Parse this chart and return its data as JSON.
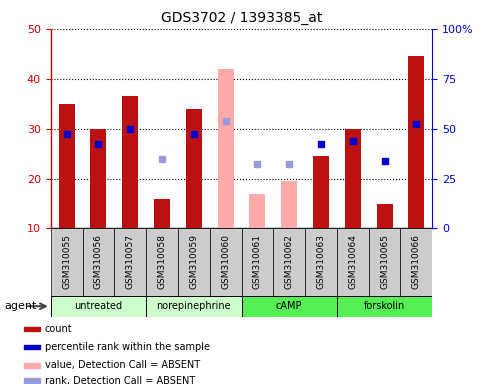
{
  "title": "GDS3702 / 1393385_at",
  "samples": [
    "GSM310055",
    "GSM310056",
    "GSM310057",
    "GSM310058",
    "GSM310059",
    "GSM310060",
    "GSM310061",
    "GSM310062",
    "GSM310063",
    "GSM310064",
    "GSM310065",
    "GSM310066"
  ],
  "counts": [
    35,
    30,
    36.5,
    16,
    34,
    null,
    null,
    null,
    24.5,
    30,
    15,
    44.5
  ],
  "ranks_left": [
    29,
    27,
    30,
    null,
    29,
    null,
    null,
    null,
    27,
    27.5,
    23.5,
    31
  ],
  "absent_counts": [
    null,
    null,
    null,
    null,
    null,
    42,
    17,
    19.5,
    null,
    null,
    null,
    null
  ],
  "absent_ranks_left": [
    null,
    null,
    null,
    24,
    null,
    31.5,
    23,
    23,
    null,
    null,
    null,
    null
  ],
  "ylim_left": [
    10,
    50
  ],
  "ylim_right": [
    0,
    100
  ],
  "yticks_left": [
    10,
    20,
    30,
    40,
    50
  ],
  "yticks_right": [
    0,
    25,
    50,
    75,
    100
  ],
  "bar_width": 0.5,
  "groups": [
    {
      "label": "untreated",
      "start": 0,
      "end": 2,
      "color": "#ccffcc"
    },
    {
      "label": "norepinephrine",
      "start": 3,
      "end": 5,
      "color": "#ccffcc"
    },
    {
      "label": "cAMP",
      "start": 6,
      "end": 8,
      "color": "#55ee55"
    },
    {
      "label": "forskolin",
      "start": 9,
      "end": 11,
      "color": "#55ee55"
    }
  ],
  "bar_color_present": "#bb1111",
  "bar_color_absent": "#ffaaaa",
  "rank_color_present": "#0000cc",
  "rank_color_absent": "#9999dd",
  "rank_marker_size": 5,
  "legend_items": [
    {
      "color": "#bb1111",
      "label": "count"
    },
    {
      "color": "#0000cc",
      "label": "percentile rank within the sample"
    },
    {
      "color": "#ffaaaa",
      "label": "value, Detection Call = ABSENT"
    },
    {
      "color": "#9999dd",
      "label": "rank, Detection Call = ABSENT"
    }
  ],
  "left_axis_color": "#cc0000",
  "right_axis_color": "#0000cc",
  "tick_bg_color": "#cccccc",
  "chart_bg_color": "#ffffff"
}
